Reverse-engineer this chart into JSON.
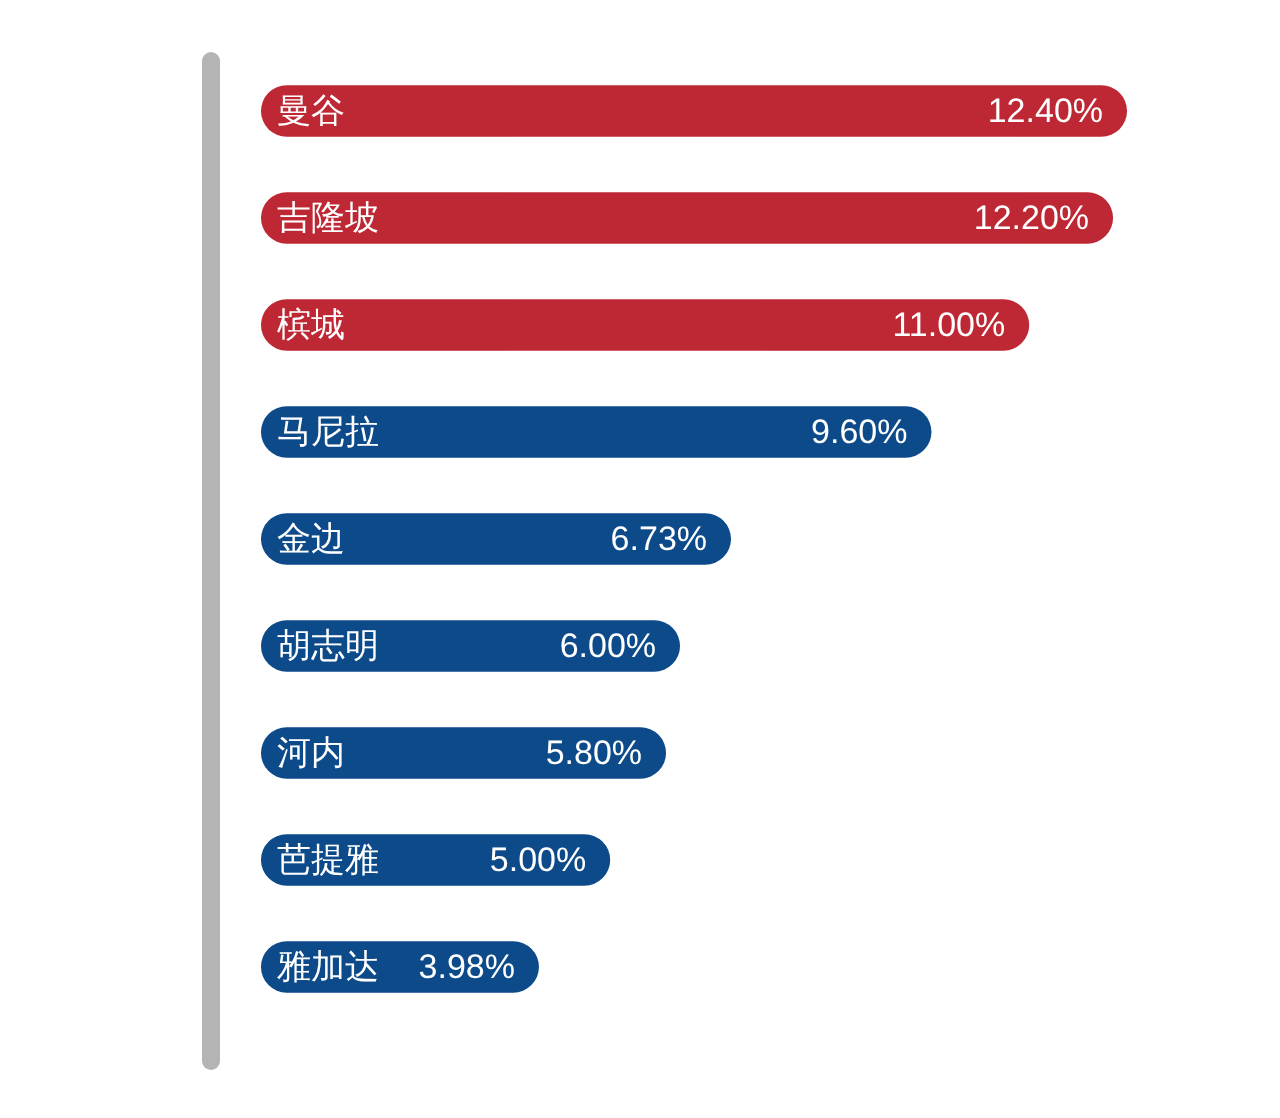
{
  "chart_data": {
    "type": "bar",
    "orientation": "horizontal",
    "categories": [
      "曼谷",
      "吉隆坡",
      "槟城",
      "马尼拉",
      "金边",
      "胡志明",
      "河内",
      "芭提雅",
      "雅加达"
    ],
    "values": [
      12.4,
      12.2,
      11.0,
      9.6,
      6.73,
      6.0,
      5.8,
      5.0,
      3.98
    ],
    "value_labels": [
      "12.40%",
      "12.20%",
      "11.00%",
      "9.60%",
      "6.73%",
      "6.00%",
      "5.80%",
      "5.00%",
      "3.98%"
    ],
    "colors": [
      "#be2834",
      "#be2834",
      "#be2834",
      "#0d4a8a",
      "#0d4a8a",
      "#0d4a8a",
      "#0d4a8a",
      "#0d4a8a",
      "#0d4a8a"
    ],
    "tick_labels": "y"
  }
}
